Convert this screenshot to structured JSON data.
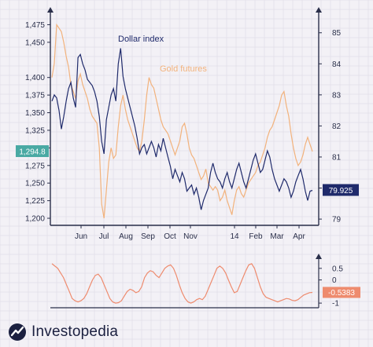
{
  "brand": {
    "name": "Investopedia"
  },
  "colors": {
    "background": "#f3f1f6",
    "grid": "#d9d6e2",
    "axis": "#2a2f4a",
    "dollar": "#1f2a6b",
    "gold": "#f2b27c",
    "oscillator": "#ee8b6e",
    "badge_gold": "#49a9a3",
    "badge_dollar": "#1f2a6b",
    "badge_osc": "#ee8b6e"
  },
  "chart_data": [
    {
      "type": "line",
      "x_ticks": [
        "Jun",
        "Jul",
        "Aug",
        "Sep",
        "Oct",
        "Nov",
        "14",
        "Feb",
        "Mar",
        "Apr"
      ],
      "left_axis": {
        "ticks": [
          "1,475",
          "1,450",
          "1,400",
          "1,375",
          "1,350",
          "1,325",
          "1,300",
          "1,275",
          "1,250",
          "1,225",
          "1,200"
        ],
        "ylim": [
          1190,
          1490
        ]
      },
      "right_axis": {
        "ticks": [
          "85",
          "84",
          "83",
          "82",
          "81",
          "80",
          "79"
        ],
        "ylim": [
          78.8,
          85.6
        ]
      },
      "current_values": {
        "gold": "1,294.8",
        "dollar": "79.925"
      },
      "series": [
        {
          "name": "Dollar index",
          "axis": "right",
          "values": [
            82.8,
            83.0,
            82.9,
            82.5,
            81.9,
            82.3,
            82.8,
            83.2,
            83.4,
            82.9,
            82.6,
            84.2,
            84.3,
            84.0,
            83.8,
            83.5,
            83.4,
            83.3,
            83.1,
            82.8,
            82.3,
            81.5,
            81.1,
            82.2,
            82.6,
            83.0,
            83.2,
            82.8,
            84.0,
            84.5,
            83.6,
            83.2,
            82.9,
            82.6,
            82.3,
            82.0,
            81.6,
            81.1,
            81.3,
            81.4,
            81.1,
            81.3,
            81.5,
            81.3,
            81.0,
            81.4,
            81.2,
            81.6,
            81.3,
            81.0,
            80.7,
            80.3,
            80.6,
            80.4,
            80.2,
            80.5,
            80.3,
            79.9,
            80.0,
            80.1,
            79.8,
            80.0,
            79.7,
            79.3,
            79.6,
            79.8,
            80.0,
            80.5,
            80.8,
            80.5,
            80.3,
            80.2,
            80.0,
            80.3,
            80.5,
            80.2,
            80.0,
            80.3,
            80.6,
            80.8,
            80.5,
            80.2,
            80.0,
            80.3,
            80.6,
            80.9,
            81.1,
            80.8,
            80.5,
            80.6,
            80.9,
            81.2,
            81.0,
            80.6,
            80.3,
            80.1,
            79.9,
            80.1,
            80.3,
            80.2,
            80.0,
            79.7,
            79.9,
            80.2,
            80.4,
            80.6,
            80.3,
            79.9,
            79.6,
            79.9,
            79.925
          ]
        },
        {
          "name": "Gold futures",
          "axis": "left",
          "values": [
            1400,
            1420,
            1475,
            1470,
            1465,
            1450,
            1430,
            1415,
            1390,
            1380,
            1370,
            1395,
            1405,
            1390,
            1380,
            1370,
            1355,
            1345,
            1340,
            1335,
            1300,
            1220,
            1200,
            1240,
            1280,
            1300,
            1285,
            1290,
            1330,
            1360,
            1375,
            1355,
            1340,
            1330,
            1320,
            1310,
            1300,
            1295,
            1310,
            1340,
            1375,
            1400,
            1390,
            1385,
            1370,
            1355,
            1340,
            1330,
            1325,
            1320,
            1310,
            1300,
            1290,
            1300,
            1310,
            1330,
            1335,
            1320,
            1300,
            1290,
            1285,
            1275,
            1265,
            1255,
            1260,
            1270,
            1250,
            1245,
            1240,
            1245,
            1240,
            1225,
            1230,
            1240,
            1225,
            1215,
            1205,
            1225,
            1240,
            1245,
            1235,
            1230,
            1240,
            1250,
            1255,
            1260,
            1265,
            1275,
            1280,
            1290,
            1300,
            1315,
            1325,
            1330,
            1340,
            1350,
            1360,
            1375,
            1380,
            1360,
            1345,
            1320,
            1300,
            1285,
            1275,
            1280,
            1290,
            1305,
            1315,
            1305,
            1294.8
          ]
        }
      ]
    },
    {
      "type": "line",
      "right_axis": {
        "ticks": [
          "0.5",
          "0",
          "-1"
        ],
        "ylim": [
          -1.2,
          0.9
        ]
      },
      "current_value": "-0.5383",
      "series": [
        {
          "values": [
            0.7,
            0.6,
            0.5,
            0.3,
            0.1,
            -0.2,
            -0.5,
            -0.8,
            -0.9,
            -0.95,
            -0.9,
            -0.8,
            -0.6,
            -0.3,
            0.0,
            0.2,
            0.25,
            0.1,
            -0.2,
            -0.5,
            -0.8,
            -0.95,
            -1.0,
            -0.98,
            -0.9,
            -0.7,
            -0.5,
            -0.4,
            -0.45,
            -0.55,
            -0.5,
            -0.3,
            0.1,
            0.3,
            0.4,
            0.35,
            0.2,
            0.1,
            0.3,
            0.5,
            0.6,
            0.65,
            0.5,
            0.2,
            -0.2,
            -0.55,
            -0.8,
            -0.95,
            -1.0,
            -0.95,
            -0.85,
            -0.8,
            -0.85,
            -0.7,
            -0.4,
            -0.1,
            0.2,
            0.5,
            0.6,
            0.5,
            0.3,
            0.0,
            -0.3,
            -0.55,
            -0.5,
            -0.2,
            0.1,
            0.4,
            0.65,
            0.7,
            0.5,
            0.1,
            -0.3,
            -0.6,
            -0.75,
            -0.8,
            -0.85,
            -0.9,
            -0.95,
            -0.9,
            -0.85,
            -0.8,
            -0.82,
            -0.88,
            -0.9,
            -0.85,
            -0.75,
            -0.65,
            -0.6,
            -0.55,
            -0.5383
          ]
        }
      ]
    }
  ]
}
